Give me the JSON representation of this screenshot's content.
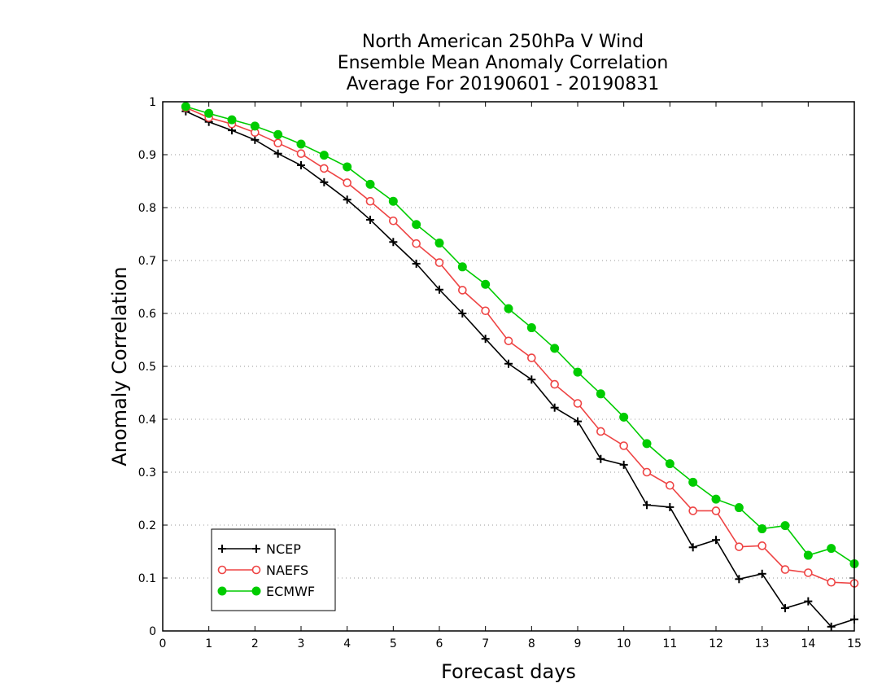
{
  "chart_data": {
    "type": "line",
    "title": [
      "North American 250hPa V Wind",
      "Ensemble Mean Anomaly Correlation",
      "Average For 20190601 - 20190831"
    ],
    "xlabel": "Forecast days",
    "ylabel": "Anomaly Correlation",
    "xlim": [
      0,
      15
    ],
    "ylim": [
      0,
      1
    ],
    "x_ticks": [
      "0",
      "1",
      "2",
      "3",
      "4",
      "5",
      "6",
      "7",
      "8",
      "9",
      "10",
      "11",
      "12",
      "13",
      "14",
      "15"
    ],
    "y_ticks": [
      "0",
      "0.1",
      "0.2",
      "0.3",
      "0.4",
      "0.5",
      "0.6",
      "0.7",
      "0.8",
      "0.9",
      "1"
    ],
    "grid": "horizontal-dotted",
    "legend_position": "bottom-left",
    "x": [
      0.5,
      1,
      1.5,
      2,
      2.5,
      3,
      3.5,
      4,
      4.5,
      5,
      5.5,
      6,
      6.5,
      7,
      7.5,
      8,
      8.5,
      9,
      9.5,
      10,
      10.5,
      11,
      11.5,
      12,
      12.5,
      13,
      13.5,
      14,
      14.5,
      15
    ],
    "series": [
      {
        "name": "NCEP",
        "color": "#000000",
        "marker": "plus",
        "values": [
          0.982,
          0.962,
          0.946,
          0.928,
          0.902,
          0.88,
          0.848,
          0.815,
          0.777,
          0.735,
          0.694,
          0.645,
          0.6,
          0.552,
          0.505,
          0.475,
          0.422,
          0.396,
          0.325,
          0.314,
          0.238,
          0.234,
          0.158,
          0.172,
          0.098,
          0.108,
          0.043,
          0.056,
          0.008,
          0.022
        ]
      },
      {
        "name": "NAEFS",
        "color": "#ee4444",
        "marker": "open-circle",
        "values": [
          0.989,
          0.97,
          0.958,
          0.942,
          0.922,
          0.902,
          0.874,
          0.847,
          0.812,
          0.775,
          0.732,
          0.696,
          0.644,
          0.605,
          0.548,
          0.516,
          0.466,
          0.43,
          0.377,
          0.35,
          0.3,
          0.275,
          0.227,
          0.227,
          0.159,
          0.161,
          0.116,
          0.11,
          0.092,
          0.09
        ]
      },
      {
        "name": "ECMWF",
        "color": "#00cc00",
        "marker": "filled-circle",
        "values": [
          0.991,
          0.978,
          0.966,
          0.954,
          0.938,
          0.92,
          0.899,
          0.877,
          0.844,
          0.812,
          0.768,
          0.733,
          0.688,
          0.655,
          0.609,
          0.573,
          0.534,
          0.489,
          0.448,
          0.404,
          0.354,
          0.316,
          0.281,
          0.249,
          0.233,
          0.193,
          0.199,
          0.143,
          0.156,
          0.127
        ]
      }
    ]
  }
}
